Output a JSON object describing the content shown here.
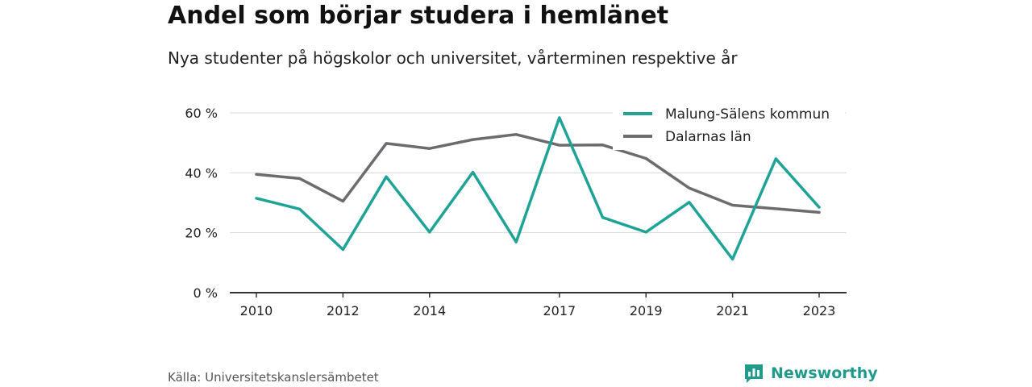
{
  "header": {
    "title": "Andel som börjar studera i hemlänet",
    "subtitle": "Nya studenter på högskolor och universitet, vårterminen respektive år"
  },
  "footer": {
    "source": "Källa: Universitetskanslersämbetet",
    "brand": "Newsworthy",
    "brand_icon": "bar-chart-icon"
  },
  "colors": {
    "malung": "#1fa396",
    "dalarna": "#6e6b70",
    "grid": "#d9d9d9",
    "axis": "#333333"
  },
  "chart_data": {
    "type": "line",
    "title": "Andel som börjar studera i hemlänet",
    "subtitle": "Nya studenter på högskolor och universitet, vårterminen respektive år",
    "x": [
      2010,
      2011,
      2012,
      2013,
      2014,
      2015,
      2016,
      2017,
      2018,
      2019,
      2020,
      2021,
      2022,
      2023
    ],
    "x_ticks": [
      2010,
      2012,
      2014,
      2017,
      2019,
      2021,
      2023
    ],
    "y_ticks": [
      0,
      20,
      40,
      60
    ],
    "y_tick_labels": [
      "0 %",
      "20 %",
      "40 %",
      "60 %"
    ],
    "ylim": [
      0,
      60
    ],
    "grid": true,
    "legend_position": "top-right",
    "series": [
      {
        "name": "Malung-Sälens kommun",
        "color": "#1fa396",
        "values": [
          31.5,
          27.9,
          14.4,
          38.7,
          20.2,
          40.2,
          16.9,
          58.4,
          25.1,
          20.2,
          30.2,
          11.2,
          44.7,
          28.5
        ]
      },
      {
        "name": "Dalarnas län",
        "color": "#6e6b70",
        "values": [
          39.5,
          38.1,
          30.5,
          49.8,
          48.1,
          51.1,
          52.8,
          49.2,
          49.3,
          44.8,
          34.9,
          29.2,
          28.0,
          26.8
        ]
      }
    ]
  }
}
